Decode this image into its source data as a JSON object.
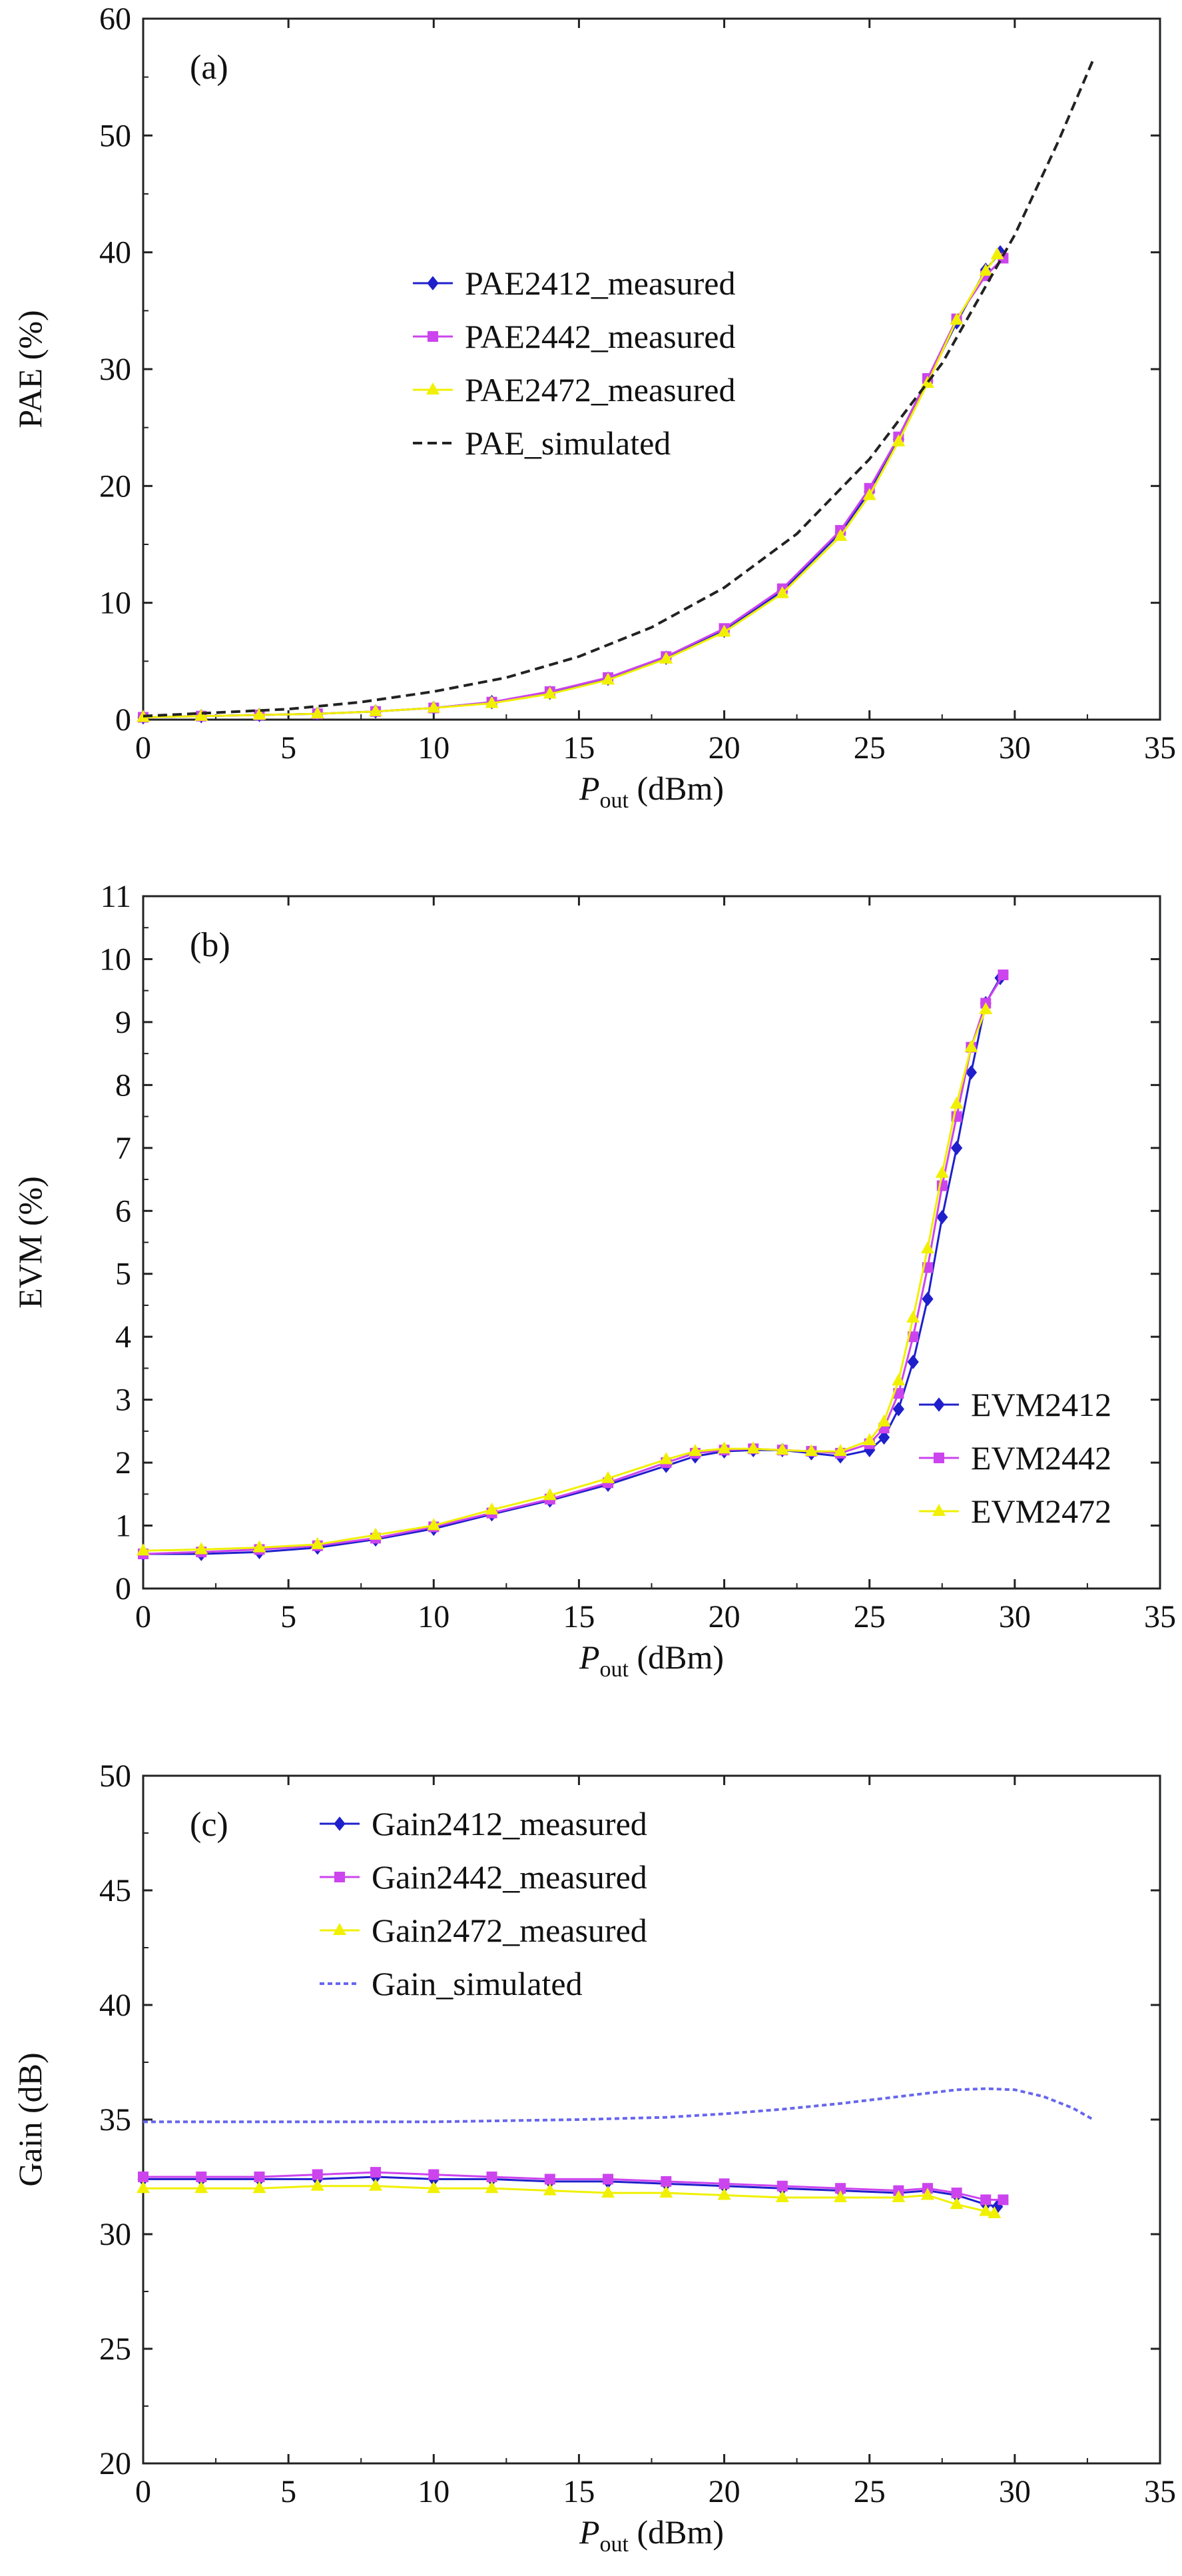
{
  "chart_data": [
    {
      "type": "line",
      "panel_label": "(a)",
      "xlabel": "P",
      "xlabel_sub": "out",
      "xlabel_unit": " (dBm)",
      "ylabel": "PAE (%)",
      "xlim": [
        0,
        35
      ],
      "ylim": [
        0,
        60
      ],
      "xticks": [
        "0",
        "5",
        "10",
        "15",
        "20",
        "25",
        "30",
        "35"
      ],
      "yticks": [
        "0",
        "10",
        "20",
        "30",
        "40",
        "50",
        "60"
      ],
      "legend_position": "upper-left",
      "series": [
        {
          "name": "PAE2412_measured",
          "color": "#1f1fcc",
          "marker": "diamond",
          "dash": "",
          "x": [
            0,
            2,
            4,
            6,
            8,
            10,
            12,
            14,
            16,
            18,
            20,
            22,
            24,
            25,
            26,
            27,
            28,
            29,
            29.5
          ],
          "y": [
            0.2,
            0.3,
            0.4,
            0.5,
            0.7,
            1.0,
            1.5,
            2.3,
            3.5,
            5.3,
            7.6,
            11.0,
            16.0,
            19.5,
            24.0,
            29.0,
            34.0,
            38.5,
            40.0
          ]
        },
        {
          "name": "PAE2442_measured",
          "color": "#cc44ee",
          "marker": "square",
          "dash": "",
          "x": [
            0,
            2,
            4,
            6,
            8,
            10,
            12,
            14,
            16,
            18,
            20,
            22,
            24,
            25,
            26,
            27,
            28,
            29,
            29.6
          ],
          "y": [
            0.2,
            0.3,
            0.4,
            0.5,
            0.7,
            1.0,
            1.5,
            2.4,
            3.6,
            5.4,
            7.8,
            11.2,
            16.2,
            19.8,
            24.2,
            29.2,
            34.3,
            38.0,
            39.5
          ]
        },
        {
          "name": "PAE2472_measured",
          "color": "#f0f000",
          "marker": "triangle",
          "dash": "",
          "x": [
            0,
            2,
            4,
            6,
            8,
            10,
            12,
            14,
            16,
            18,
            20,
            22,
            24,
            25,
            26,
            27,
            28,
            29,
            29.4
          ],
          "y": [
            0.2,
            0.3,
            0.4,
            0.5,
            0.7,
            1.0,
            1.4,
            2.2,
            3.4,
            5.2,
            7.5,
            10.8,
            15.7,
            19.2,
            23.8,
            28.8,
            34.2,
            38.4,
            39.8
          ]
        },
        {
          "name": "PAE_simulated",
          "color": "#222222",
          "marker": "none",
          "dash": "14,8",
          "x": [
            0,
            2.5,
            5,
            7.5,
            10,
            12.5,
            15,
            17.5,
            20,
            22.5,
            25,
            27.5,
            30,
            31.5,
            32.7
          ],
          "y": [
            0.3,
            0.6,
            0.9,
            1.5,
            2.4,
            3.6,
            5.4,
            7.9,
            11.3,
            15.9,
            22.3,
            30.5,
            41.5,
            49.5,
            56.5
          ]
        }
      ]
    },
    {
      "type": "line",
      "panel_label": "(b)",
      "xlabel": "P",
      "xlabel_sub": "out",
      "xlabel_unit": " (dBm)",
      "ylabel": "EVM (%)",
      "xlim": [
        0,
        35
      ],
      "ylim": [
        0,
        11
      ],
      "xticks": [
        "0",
        "5",
        "10",
        "15",
        "20",
        "25",
        "30",
        "35"
      ],
      "yticks": [
        "0",
        "1",
        "2",
        "3",
        "4",
        "5",
        "6",
        "7",
        "8",
        "9",
        "10",
        "11"
      ],
      "legend_position": "lower-right",
      "series": [
        {
          "name": "EVM2412",
          "color": "#1f1fcc",
          "marker": "diamond",
          "dash": "",
          "x": [
            0,
            2,
            4,
            6,
            8,
            10,
            12,
            14,
            16,
            18,
            19,
            20,
            21,
            22,
            23,
            24,
            25,
            25.5,
            26,
            26.5,
            27,
            27.5,
            28,
            28.5,
            29,
            29.5
          ],
          "y": [
            0.55,
            0.55,
            0.58,
            0.65,
            0.78,
            0.95,
            1.18,
            1.4,
            1.65,
            1.95,
            2.1,
            2.18,
            2.2,
            2.2,
            2.15,
            2.1,
            2.2,
            2.4,
            2.85,
            3.6,
            4.6,
            5.9,
            7.0,
            8.2,
            9.3,
            9.7
          ]
        },
        {
          "name": "EVM2442",
          "color": "#cc44ee",
          "marker": "square",
          "dash": "",
          "x": [
            0,
            2,
            4,
            6,
            8,
            10,
            12,
            14,
            16,
            18,
            19,
            20,
            21,
            22,
            23,
            24,
            25,
            25.5,
            26,
            26.5,
            27,
            27.5,
            28,
            28.5,
            29,
            29.6
          ],
          "y": [
            0.55,
            0.58,
            0.62,
            0.68,
            0.8,
            0.98,
            1.2,
            1.42,
            1.68,
            2.0,
            2.15,
            2.2,
            2.22,
            2.2,
            2.18,
            2.15,
            2.3,
            2.55,
            3.1,
            4.0,
            5.1,
            6.4,
            7.5,
            8.6,
            9.3,
            9.75
          ]
        },
        {
          "name": "EVM2472",
          "color": "#f0f000",
          "marker": "triangle",
          "dash": "",
          "x": [
            0,
            2,
            4,
            6,
            8,
            10,
            12,
            14,
            16,
            18,
            19,
            20,
            21,
            22,
            23,
            24,
            25,
            25.5,
            26,
            26.5,
            27,
            27.5,
            28,
            28.5,
            29
          ],
          "y": [
            0.6,
            0.62,
            0.65,
            0.7,
            0.85,
            1.0,
            1.25,
            1.48,
            1.75,
            2.05,
            2.18,
            2.22,
            2.22,
            2.2,
            2.18,
            2.18,
            2.35,
            2.65,
            3.3,
            4.3,
            5.4,
            6.6,
            7.7,
            8.6,
            9.2
          ]
        }
      ]
    },
    {
      "type": "line",
      "panel_label": "(c)",
      "xlabel": "P",
      "xlabel_sub": "out",
      "xlabel_unit": " (dBm)",
      "ylabel": "Gain (dB)",
      "xlim": [
        0,
        35
      ],
      "ylim": [
        20,
        50
      ],
      "xticks": [
        "0",
        "5",
        "10",
        "15",
        "20",
        "25",
        "30",
        "35"
      ],
      "yticks": [
        "20",
        "25",
        "30",
        "35",
        "40",
        "45",
        "50"
      ],
      "legend_position": "upper-left",
      "series": [
        {
          "name": "Gain2412_measured",
          "color": "#1f1fcc",
          "marker": "diamond",
          "dash": "",
          "x": [
            0,
            2,
            4,
            6,
            8,
            10,
            12,
            14,
            16,
            18,
            20,
            22,
            24,
            26,
            27,
            28,
            29,
            29.4
          ],
          "y": [
            32.4,
            32.4,
            32.4,
            32.4,
            32.5,
            32.4,
            32.4,
            32.3,
            32.3,
            32.2,
            32.1,
            32.0,
            31.9,
            31.8,
            31.9,
            31.7,
            31.3,
            31.2
          ]
        },
        {
          "name": "Gain2442_measured",
          "color": "#cc44ee",
          "marker": "square",
          "dash": "",
          "x": [
            0,
            2,
            4,
            6,
            8,
            10,
            12,
            14,
            16,
            18,
            20,
            22,
            24,
            26,
            27,
            28,
            29,
            29.6
          ],
          "y": [
            32.5,
            32.5,
            32.5,
            32.6,
            32.7,
            32.6,
            32.5,
            32.4,
            32.4,
            32.3,
            32.2,
            32.1,
            32.0,
            31.9,
            32.0,
            31.8,
            31.5,
            31.5
          ]
        },
        {
          "name": "Gain2472_measured",
          "color": "#f0f000",
          "marker": "triangle",
          "dash": "",
          "x": [
            0,
            2,
            4,
            6,
            8,
            10,
            12,
            14,
            16,
            18,
            20,
            22,
            24,
            26,
            27,
            28,
            29,
            29.3
          ],
          "y": [
            32.0,
            32.0,
            32.0,
            32.1,
            32.1,
            32.0,
            32.0,
            31.9,
            31.8,
            31.8,
            31.7,
            31.6,
            31.6,
            31.6,
            31.7,
            31.3,
            31.0,
            30.9
          ]
        },
        {
          "name": "Gain_simulated",
          "color": "#6666ee",
          "marker": "none",
          "dash": "7,5",
          "x": [
            0,
            5,
            10,
            15,
            18,
            20,
            22,
            24,
            26,
            27,
            28,
            29,
            30,
            31,
            32,
            32.7
          ],
          "y": [
            34.9,
            34.9,
            34.9,
            35.0,
            35.1,
            35.25,
            35.45,
            35.7,
            36.0,
            36.15,
            36.3,
            36.35,
            36.3,
            36.0,
            35.5,
            35.0
          ]
        }
      ]
    }
  ]
}
